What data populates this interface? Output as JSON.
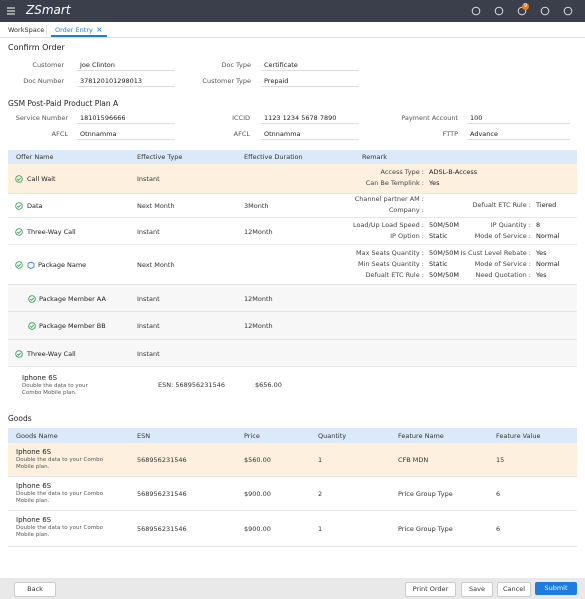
{
  "header": {
    "logo": "ZSmart",
    "badge": "9"
  },
  "tabs": [
    "WorkSpace",
    "Order Entry"
  ],
  "title": "Confirm Order",
  "customer_fields": [
    {
      "label": "Customer",
      "value": "Joe Clinton"
    },
    {
      "label": "Doc Type",
      "value": "Certificate"
    },
    {
      "label": "Doc Number",
      "value": "378120101298013"
    },
    {
      "label": "Customer Type",
      "value": "Prepaid"
    }
  ],
  "plan": {
    "title": "GSM Post-Paid Product Plan A",
    "fields": [
      {
        "label": "Service Number",
        "value": "18101596666"
      },
      {
        "label": "ICCID",
        "value": "1123 1234 5678 7890"
      },
      {
        "label": "Payment Account",
        "value": "100"
      },
      {
        "label": "AFCL",
        "value": "Otnnamma"
      },
      {
        "label": "AFCL",
        "value": "Otnnamma"
      },
      {
        "label": "FTTP",
        "value": "Advance"
      }
    ]
  },
  "offers": {
    "columns": [
      "Offer Name",
      "Effective Type",
      "Effective Duration",
      "Remark"
    ],
    "rows": [
      {
        "name": "Call Wait",
        "type": "Instant",
        "remarks": {
          "left": [
            {
              "label": "Access Type :",
              "value": "ADSL-B-Access"
            },
            {
              "label": "Can Be Templink :",
              "value": "Yes"
            }
          ],
          "right": []
        }
      },
      {
        "name": "Data",
        "type": "Next Month",
        "duration": "3Month",
        "remarks": {
          "left": [
            {
              "label": "Channel partner AM :"
            },
            {
              "label": "Company :"
            }
          ],
          "right": [
            {
              "label": "Defualt ETC Rule :",
              "value": "Tiered"
            }
          ]
        }
      },
      {
        "name": "Three-Way Call",
        "type": "Instant",
        "duration": "12Month",
        "remarks": {
          "left": [
            {
              "label": "Load/Up Load Speed :",
              "value": "50M/50M"
            },
            {
              "label": "IP Option :",
              "value": "Static"
            }
          ],
          "right": [
            {
              "label": "IP Quantity :",
              "value": "8"
            },
            {
              "label": "Mode of Service :",
              "value": "Normal"
            }
          ]
        }
      },
      {
        "name": "Package Name",
        "type": "Next Month",
        "remarks": {
          "left": [
            {
              "label": "Max Seats Quantity :",
              "value": "50M/50M"
            },
            {
              "label": "Min Seats Quantity :",
              "value": "Static"
            },
            {
              "label": "Defualt ETC Rule :",
              "value": "50M/50M"
            }
          ],
          "right": [
            {
              "label": "Is Cust Level Rebate :",
              "value": "Yes"
            },
            {
              "label": "Mode of Service :",
              "value": "Normal"
            },
            {
              "label": "Need Quotation :",
              "value": "Yes"
            }
          ]
        }
      },
      {
        "name": "Package Member  AA",
        "type": "Instant",
        "duration": "12Month",
        "remarks": {
          "left": [],
          "right": []
        }
      },
      {
        "name": "Package Member  BB",
        "type": "Instant",
        "duration": "12Month",
        "remarks": {
          "left": [],
          "right": []
        }
      },
      {
        "name": "Three-Way Call",
        "type": "Instant",
        "remarks": {
          "left": [],
          "right": []
        }
      }
    ]
  },
  "device": {
    "name": "Iphone 6S",
    "description": "Double the data to your Combo Mobile plan.",
    "esn": "ESN: 568956231546",
    "price": "$656.00"
  },
  "goods": {
    "title": "Goods",
    "columns": [
      "Goods Name",
      "ESN",
      "Price",
      "Quantity",
      "Feature Name",
      "Feature Value"
    ],
    "rows": [
      {
        "name": "Iphone 6S",
        "description": "Double the data to your Combo Mobile plan.",
        "esn": "568956231546",
        "price": "$560.00",
        "quantity": "1",
        "feature_name": "CFB MDN",
        "feature_value": "15"
      },
      {
        "name": "Iphone 6S",
        "description": "Double the data to your Combo Mobile plan.",
        "esn": "568956231546",
        "price": "$900.00",
        "quantity": "2",
        "feature_name": "Price Group Type",
        "feature_value": "6"
      },
      {
        "name": "Iphone 6S",
        "description": "Double the data to your Combo Mobile plan.",
        "esn": "568956231546",
        "price": "$900.00",
        "quantity": "1",
        "feature_name": "Price Group Type",
        "feature_value": "6"
      }
    ]
  },
  "footer": {
    "back": "Back",
    "actions": [
      "Print Order",
      "Save",
      "Cancel",
      "Submit"
    ]
  }
}
